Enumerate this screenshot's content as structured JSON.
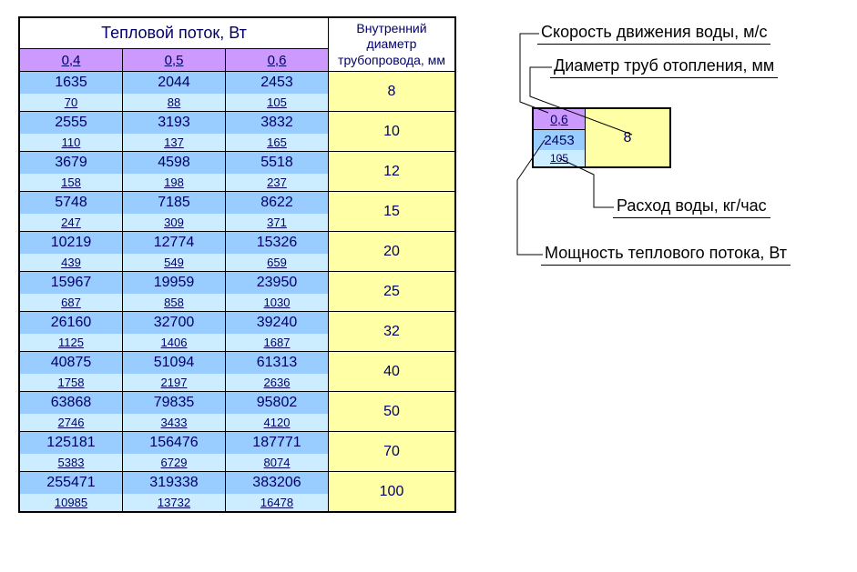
{
  "colors": {
    "purple": "#cc99ff",
    "blue": "#99ccff",
    "lightblue": "#ccecff",
    "yellow": "#ffffa6"
  },
  "table": {
    "heat_header": "Тепловой поток, Вт",
    "diam_header": "Внутренний\nдиаметр\nтрубопровода, мм",
    "speeds": [
      "0,4",
      "0,5",
      "0,6"
    ],
    "rows": [
      {
        "power": [
          "1635",
          "2044",
          "2453"
        ],
        "flow": [
          "70",
          "88",
          "105"
        ],
        "diam": "8"
      },
      {
        "power": [
          "2555",
          "3193",
          "3832"
        ],
        "flow": [
          "110",
          "137",
          "165"
        ],
        "diam": "10"
      },
      {
        "power": [
          "3679",
          "4598",
          "5518"
        ],
        "flow": [
          "158",
          "198",
          "237"
        ],
        "diam": "12"
      },
      {
        "power": [
          "5748",
          "7185",
          "8622"
        ],
        "flow": [
          "247",
          "309",
          "371"
        ],
        "diam": "15"
      },
      {
        "power": [
          "10219",
          "12774",
          "15326"
        ],
        "flow": [
          "439",
          "549",
          "659"
        ],
        "diam": "20"
      },
      {
        "power": [
          "15967",
          "19959",
          "23950"
        ],
        "flow": [
          "687",
          "858",
          "1030"
        ],
        "diam": "25"
      },
      {
        "power": [
          "26160",
          "32700",
          "39240"
        ],
        "flow": [
          "1125",
          "1406",
          "1687"
        ],
        "diam": "32"
      },
      {
        "power": [
          "40875",
          "51094",
          "61313"
        ],
        "flow": [
          "1758",
          "2197",
          "2636"
        ],
        "diam": "40"
      },
      {
        "power": [
          "63868",
          "79835",
          "95802"
        ],
        "flow": [
          "2746",
          "3433",
          "4120"
        ],
        "diam": "50"
      },
      {
        "power": [
          "125181",
          "156476",
          "187771"
        ],
        "flow": [
          "5383",
          "6729",
          "8074"
        ],
        "diam": "70"
      },
      {
        "power": [
          "255471",
          "319338",
          "383206"
        ],
        "flow": [
          "10985",
          "13732",
          "16478"
        ],
        "diam": "100"
      }
    ]
  },
  "legend": {
    "speed": "Скорость движения воды, м/с",
    "diam": "Диаметр труб отопления, мм",
    "flow": "Расход воды, кг/час",
    "power": "Мощность теплового потока, Вт"
  },
  "sample": {
    "speed": "0,6",
    "power": "2453",
    "flow": "105",
    "diam": "8"
  }
}
